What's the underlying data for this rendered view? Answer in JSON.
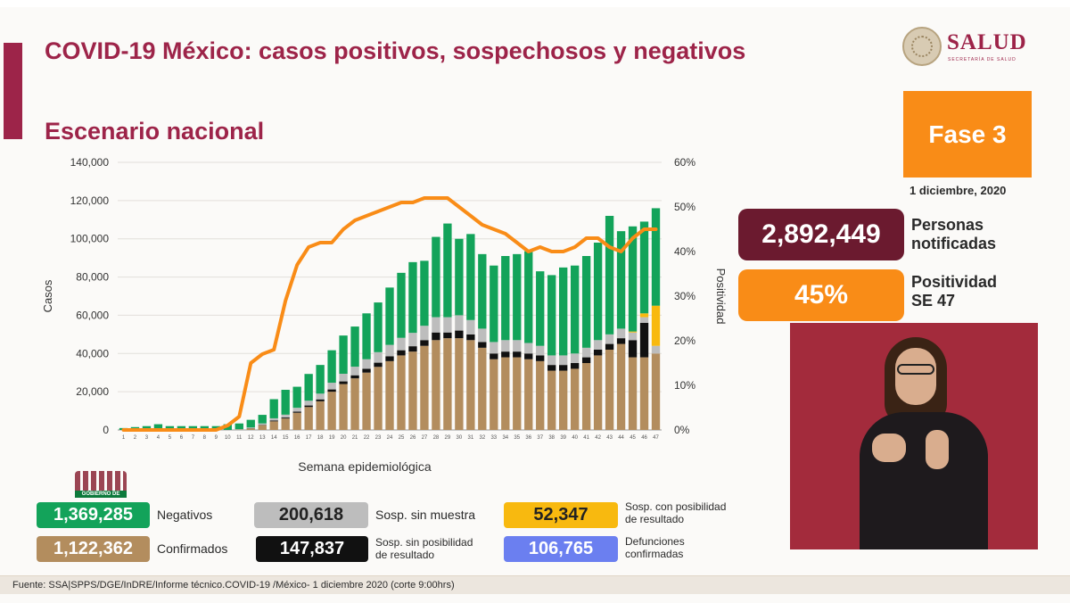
{
  "header": {
    "title": "COVID-19 México: casos positivos, sospechosos y negativos",
    "subtitle": "Escenario nacional"
  },
  "logo": {
    "word": "SALUD",
    "sub": "SECRETARÍA DE SALUD"
  },
  "phase": {
    "label": "Fase 3",
    "date": "1 diciembre, 2020"
  },
  "stats": {
    "notificadas_value": "2,892,449",
    "notificadas_label_1": "Personas",
    "notificadas_label_2": "notificadas",
    "positividad_value": "45%",
    "positividad_label_1": "Positividad",
    "positividad_label_2": "SE 47"
  },
  "legend": {
    "negativos": {
      "value": "1,369,285",
      "label": "Negativos"
    },
    "confirmados": {
      "value": "1,122,362",
      "label": "Confirmados"
    },
    "sin_muestra": {
      "value": "200,618",
      "label": "Sosp. sin muestra"
    },
    "sin_posibilidad": {
      "value": "147,837",
      "label_1": "Sosp. sin posibilidad",
      "label_2": "de resultado"
    },
    "con_posibilidad": {
      "value": "52,347",
      "label_1": "Sosp. con posibilidad",
      "label_2": "de resultado"
    },
    "defunciones": {
      "value": "106,765",
      "label_1": "Defunciones",
      "label_2": "confirmadas"
    }
  },
  "gob_mark": "GOBIERNO DE",
  "footer": "Fuente: SSA|SPPS/DGE/InDRE/Informe técnico.COVID-19 /México- 1 diciembre 2020 (corte 9:00hrs)",
  "colors": {
    "negativos": "#13a35a",
    "confirmados": "#b38d5e",
    "sin_muestra": "#bdbdbd",
    "sin_posibilidad": "#111111",
    "con_posibilidad": "#f8b90f",
    "defunciones": "#6b7ff0",
    "positividad_line": "#f98c17",
    "brand": "#9d2449"
  },
  "chart_data": {
    "type": "bar",
    "stacked": true,
    "xlabel": "Semana epidemiológica",
    "ylabel": "Casos",
    "y2label": "Positividad",
    "ylim": [
      0,
      140000
    ],
    "y2lim": [
      0,
      60
    ],
    "yticks": [
      "0",
      "20,000",
      "40,000",
      "60,000",
      "80,000",
      "100,000",
      "120,000",
      "140,000"
    ],
    "y2ticks": [
      "0%",
      "10%",
      "20%",
      "30%",
      "40%",
      "50%",
      "60%"
    ],
    "categories": [
      "1",
      "2",
      "3",
      "4",
      "5",
      "6",
      "7",
      "8",
      "9",
      "10",
      "11",
      "12",
      "13",
      "14",
      "15",
      "16",
      "17",
      "18",
      "19",
      "20",
      "21",
      "22",
      "23",
      "24",
      "25",
      "26",
      "27",
      "28",
      "29",
      "30",
      "31",
      "32",
      "33",
      "34",
      "35",
      "36",
      "37",
      "38",
      "39",
      "40",
      "41",
      "42",
      "43",
      "44",
      "45",
      "46",
      "47"
    ],
    "series": [
      {
        "name": "Confirmados",
        "color": "#b38d5e",
        "values": [
          0,
          0,
          0,
          0,
          0,
          0,
          0,
          0,
          0,
          0,
          200,
          800,
          2500,
          4500,
          6000,
          9000,
          12000,
          15000,
          20000,
          24000,
          27000,
          30000,
          33000,
          36000,
          39000,
          41000,
          44000,
          47000,
          48000,
          48000,
          47000,
          43000,
          37000,
          38000,
          38000,
          37000,
          36000,
          31000,
          31000,
          32000,
          35000,
          39000,
          42000,
          45000,
          38000,
          38000,
          40000
        ]
      },
      {
        "name": "Sosp. sin posibilidad de resultado",
        "color": "#111111",
        "values": [
          0,
          0,
          0,
          0,
          0,
          0,
          0,
          0,
          0,
          0,
          0,
          100,
          200,
          400,
          500,
          600,
          800,
          1000,
          1200,
          1400,
          1600,
          2000,
          2200,
          2500,
          2700,
          2800,
          3000,
          4000,
          3000,
          4000,
          3000,
          3000,
          3000,
          3000,
          3000,
          3000,
          3000,
          3000,
          3000,
          3000,
          3000,
          3000,
          3000,
          3000,
          9000,
          18000,
          0
        ]
      },
      {
        "name": "Sosp. sin muestra",
        "color": "#bdbdbd",
        "values": [
          0,
          0,
          0,
          0,
          0,
          0,
          0,
          0,
          0,
          0,
          200,
          400,
          700,
          1200,
          1500,
          2000,
          2500,
          3000,
          3500,
          4000,
          4500,
          5000,
          5500,
          6000,
          6500,
          7000,
          7500,
          8000,
          8000,
          8000,
          7500,
          7000,
          6000,
          6000,
          6000,
          5500,
          5000,
          5000,
          5000,
          5000,
          5000,
          5000,
          5000,
          5000,
          4000,
          3000,
          4000
        ]
      },
      {
        "name": "Sosp. con posibilidad de resultado",
        "color": "#f8b90f",
        "values": [
          0,
          0,
          0,
          0,
          0,
          0,
          0,
          0,
          0,
          0,
          0,
          0,
          0,
          0,
          0,
          0,
          0,
          0,
          0,
          0,
          0,
          0,
          0,
          0,
          0,
          0,
          0,
          0,
          0,
          0,
          0,
          0,
          0,
          0,
          0,
          0,
          0,
          0,
          0,
          0,
          0,
          0,
          0,
          0,
          500,
          2000,
          21000
        ]
      },
      {
        "name": "Negativos",
        "color": "#13a35a",
        "values": [
          1000,
          1500,
          2000,
          3000,
          2000,
          2000,
          2000,
          2000,
          2000,
          3000,
          3000,
          4000,
          4500,
          10000,
          13000,
          11000,
          14000,
          15000,
          17000,
          20000,
          21000,
          24000,
          26000,
          30000,
          34000,
          37000,
          34000,
          42000,
          49000,
          40000,
          45000,
          39000,
          40000,
          44000,
          45000,
          48000,
          39000,
          42000,
          46000,
          46000,
          48000,
          51000,
          62000,
          51000,
          55000,
          48000,
          51000
        ]
      }
    ],
    "line": {
      "name": "Positividad",
      "color": "#f98c17",
      "values": [
        0,
        0,
        0,
        0,
        0,
        0,
        0,
        0,
        0,
        1,
        3,
        15,
        17,
        18,
        29,
        37,
        41,
        42,
        42,
        45,
        47,
        48,
        49,
        50,
        51,
        51,
        52,
        52,
        52,
        50,
        48,
        46,
        45,
        44,
        42,
        40,
        41,
        40,
        40,
        41,
        43,
        43,
        41,
        40,
        43,
        45,
        45
      ]
    }
  }
}
